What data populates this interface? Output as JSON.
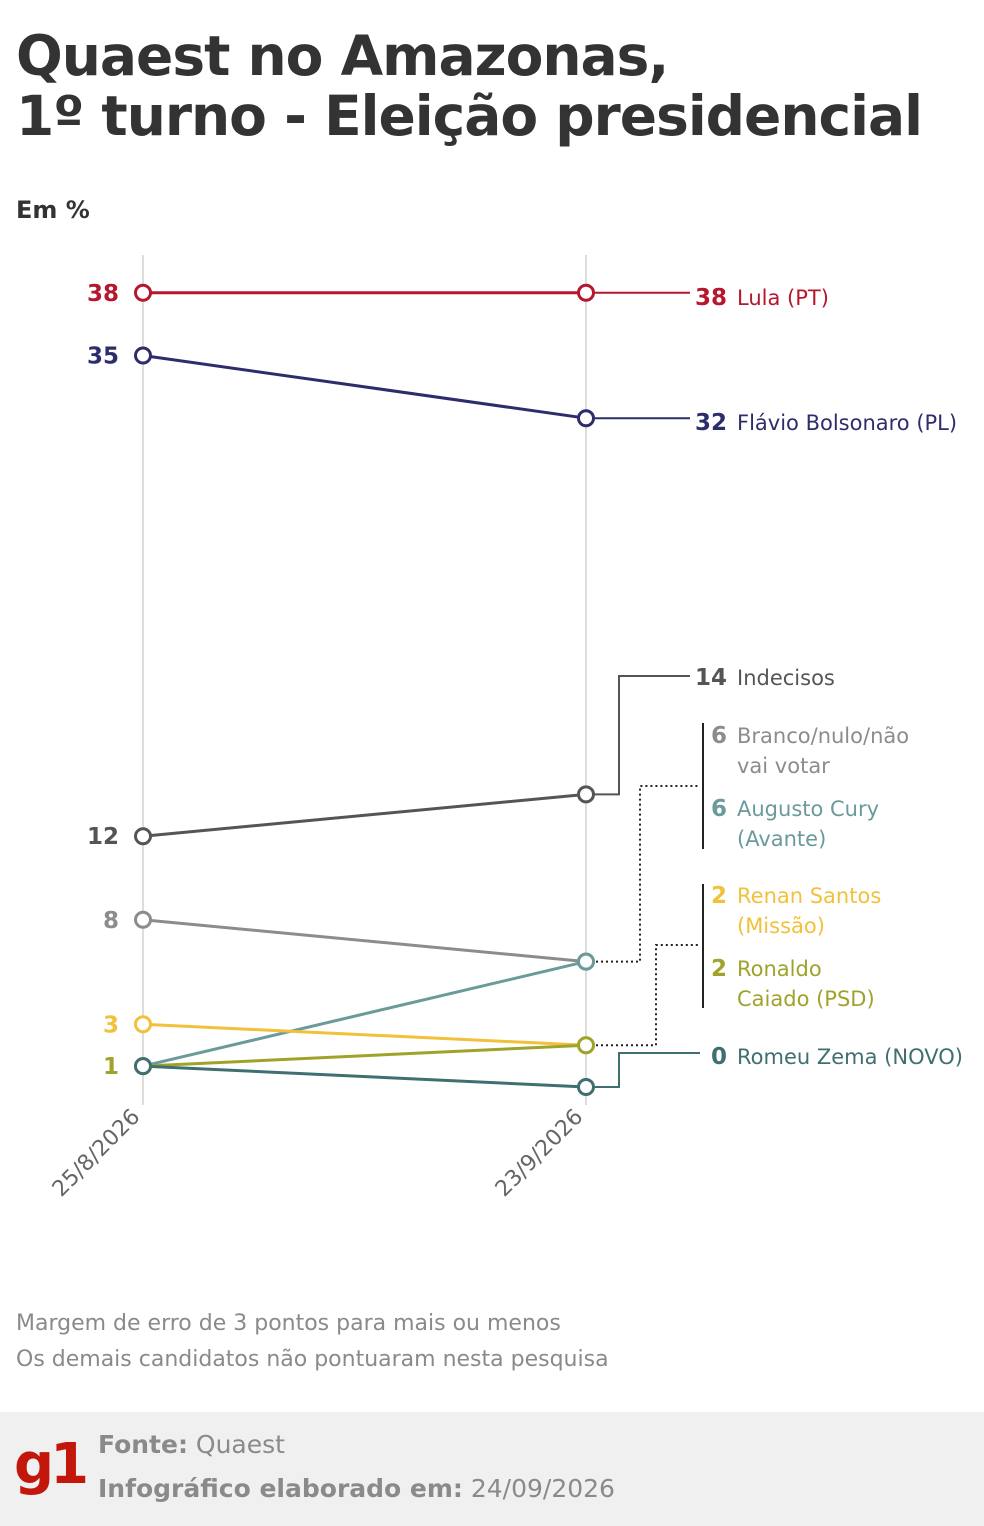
{
  "header": {
    "title_line1": "Quaest no Amazonas,",
    "title_line2": "1º turno - Eleição presidencial",
    "unit": "Em %"
  },
  "chart_data": {
    "type": "line",
    "x": [
      "25/8/2026",
      "23/9/2026"
    ],
    "ylim": [
      0,
      38
    ],
    "grid": "vertical lines at each survey date",
    "series": [
      {
        "name": "Lula (PT)",
        "values": [
          38,
          38
        ],
        "color": "#b5172e",
        "start_label": "38",
        "end_label": "38"
      },
      {
        "name": "Flávio Bolsonaro (PL)",
        "values": [
          35,
          32
        ],
        "color": "#2d2d6b",
        "start_label": "35",
        "end_label": "32"
      },
      {
        "name": "Indecisos",
        "values": [
          12,
          14
        ],
        "color": "#555555",
        "start_label": "12",
        "end_label": "14"
      },
      {
        "name": "Branco/nulo/não vai votar",
        "values": [
          8,
          6
        ],
        "color": "#8c8c8c",
        "start_label": "8",
        "end_label": "6"
      },
      {
        "name": "Augusto Cury (Avante)",
        "values": [
          1,
          6
        ],
        "color": "#6a9a9a",
        "start_label": "",
        "end_label": "6"
      },
      {
        "name": "Renan Santos (Missão)",
        "values": [
          3,
          2
        ],
        "color": "#f2c13a",
        "start_label": "3",
        "end_label": "2"
      },
      {
        "name": "Ronaldo Caiado (PSD)",
        "values": [
          1,
          2
        ],
        "color": "#9fa32a",
        "start_label": "1",
        "end_label": "2"
      },
      {
        "name": "Romeu Zema (NOVO)",
        "values": [
          1,
          0
        ],
        "color": "#3f6f70",
        "start_label": "",
        "end_label": "0"
      }
    ],
    "end_labels": [
      {
        "value": "38",
        "lines": [
          "Lula (PT)"
        ],
        "color": "#b5172e"
      },
      {
        "value": "32",
        "lines": [
          "Flávio Bolsonaro (PL)"
        ],
        "color": "#2d2d6b"
      },
      {
        "value": "14",
        "lines": [
          "Indecisos"
        ],
        "color": "#555555"
      },
      {
        "value": "6",
        "lines": [
          "Branco/nulo/não",
          "vai votar"
        ],
        "color": "#8c8c8c"
      },
      {
        "value": "6",
        "lines": [
          "Augusto Cury",
          "(Avante)"
        ],
        "color": "#6a9a9a"
      },
      {
        "value": "2",
        "lines": [
          "Renan Santos",
          "(Missão)"
        ],
        "color": "#f2c13a"
      },
      {
        "value": "2",
        "lines": [
          "Ronaldo",
          "Caiado (PSD)"
        ],
        "color": "#9fa32a"
      },
      {
        "value": "0",
        "lines": [
          "Romeu Zema (NOVO)"
        ],
        "color": "#3f6f70"
      }
    ]
  },
  "notes": {
    "line1": "Margem de erro de 3 pontos para mais ou menos",
    "line2": "Os demais candidatos não pontuaram nesta pesquisa"
  },
  "footer": {
    "logo": "g1",
    "source_label": "Fonte:",
    "source_value": "Quaest",
    "date_label": "Infográfico elaborado em:",
    "date_value": "24/09/2026"
  }
}
